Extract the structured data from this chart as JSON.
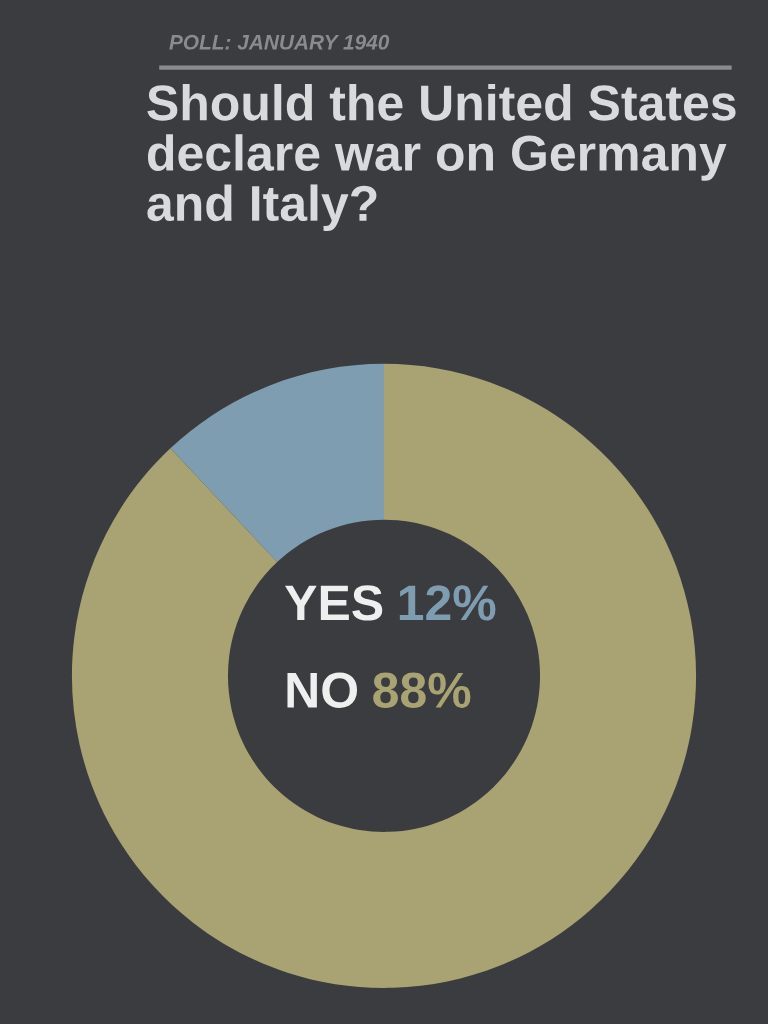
{
  "chart_data": {
    "type": "donut",
    "subtitle": "POLL: JANUARY 1940",
    "title": "Should the United States declare war on Germany and Italy?",
    "categories": [
      "YES",
      "NO"
    ],
    "values": [
      12,
      88
    ],
    "colors": [
      "#7f9db0",
      "#a9a272"
    ],
    "value_labels": [
      "12%",
      "88%"
    ]
  }
}
